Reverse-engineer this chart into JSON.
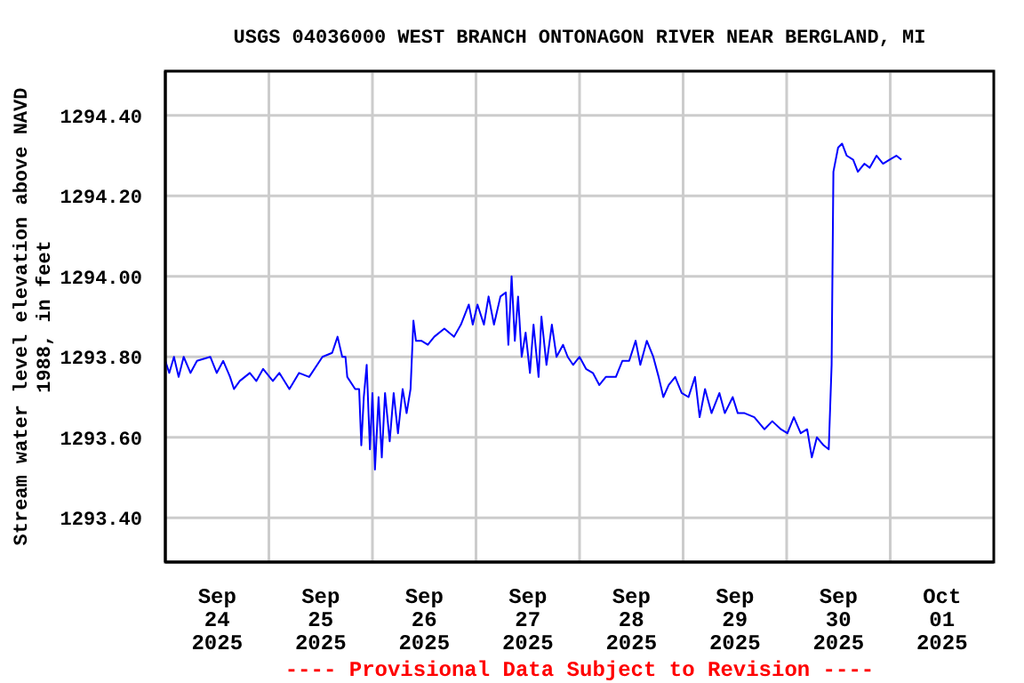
{
  "chart_data": {
    "type": "line",
    "title": "USGS 04036000 WEST BRANCH ONTONAGON RIVER NEAR BERGLAND, MI",
    "ylabel": "Stream water level elevation above NAVD 1988, in feet",
    "annotations": [
      "---- Provisional Data Subject to Revision ----"
    ],
    "xlim": [
      "2025-09-24T00:00",
      "2025-10-02T00:00"
    ],
    "xticks": [
      {
        "value": "2025-09-24T12:00",
        "label": "Sep\n24\n2025"
      },
      {
        "value": "2025-09-25T00:00",
        "label": null
      },
      {
        "value": "2025-09-25T12:00",
        "label": "Sep\n25\n2025"
      },
      {
        "value": "2025-09-26T00:00",
        "label": null
      },
      {
        "value": "2025-09-26T12:00",
        "label": "Sep\n26\n2025"
      },
      {
        "value": "2025-09-27T00:00",
        "label": null
      },
      {
        "value": "2025-09-27T12:00",
        "label": "Sep\n27\n2025"
      },
      {
        "value": "2025-09-28T00:00",
        "label": null
      },
      {
        "value": "2025-09-28T12:00",
        "label": "Sep\n28\n2025"
      },
      {
        "value": "2025-09-29T00:00",
        "label": null
      },
      {
        "value": "2025-09-29T12:00",
        "label": "Sep\n29\n2025"
      },
      {
        "value": "2025-09-30T00:00",
        "label": null
      },
      {
        "value": "2025-09-30T12:00",
        "label": "Sep\n30\n2025"
      },
      {
        "value": "2025-10-01T00:00",
        "label": null
      },
      {
        "value": "2025-10-01T12:00",
        "label": "Oct\n01\n2025"
      }
    ],
    "ylim": [
      1293.29,
      1294.51
    ],
    "yticks": [
      {
        "value": 1293.4,
        "label": "1293.40"
      },
      {
        "value": 1293.6,
        "label": "1293.60"
      },
      {
        "value": 1293.8,
        "label": "1293.80"
      },
      {
        "value": 1294.0,
        "label": "1294.00"
      },
      {
        "value": 1294.2,
        "label": "1294.20"
      },
      {
        "value": 1294.4,
        "label": "1294.40"
      }
    ],
    "grid": true,
    "marker": "none",
    "line_style": "solid",
    "x": [
      "2025-09-24T00:00",
      "2025-09-24T00:55",
      "2025-09-24T02:00",
      "2025-09-24T03:05",
      "2025-09-24T04:15",
      "2025-09-24T05:50",
      "2025-09-24T07:20",
      "2025-09-24T10:25",
      "2025-09-24T11:55",
      "2025-09-24T13:25",
      "2025-09-24T15:00",
      "2025-09-24T15:55",
      "2025-09-24T17:15",
      "2025-09-24T19:35",
      "2025-09-24T21:05",
      "2025-09-24T22:40",
      "2025-09-25T00:55",
      "2025-09-25T02:25",
      "2025-09-25T04:45",
      "2025-09-25T07:00",
      "2025-09-25T09:20",
      "2025-09-25T12:25",
      "2025-09-25T14:40",
      "2025-09-25T15:55",
      "2025-09-25T17:00",
      "2025-09-25T17:45",
      "2025-09-25T18:10",
      "2025-09-25T20:00",
      "2025-09-25T20:55",
      "2025-09-25T21:25",
      "2025-09-25T22:00",
      "2025-09-25T22:40",
      "2025-09-25T23:25",
      "2025-09-26T00:00",
      "2025-09-26T00:35",
      "2025-09-26T01:25",
      "2025-09-26T02:10",
      "2025-09-26T02:55",
      "2025-09-26T04:00",
      "2025-09-26T04:55",
      "2025-09-26T05:55",
      "2025-09-26T07:00",
      "2025-09-26T07:55",
      "2025-09-26T08:50",
      "2025-09-26T09:30",
      "2025-09-26T10:05",
      "2025-09-26T11:20",
      "2025-09-26T12:50",
      "2025-09-26T14:20",
      "2025-09-26T16:40",
      "2025-09-26T18:55",
      "2025-09-26T20:30",
      "2025-09-26T22:20",
      "2025-09-26T23:15",
      "2025-09-27T00:20",
      "2025-09-27T01:50",
      "2025-09-27T02:55",
      "2025-09-27T04:10",
      "2025-09-27T05:40",
      "2025-09-27T06:55",
      "2025-09-27T07:30",
      "2025-09-27T08:15",
      "2025-09-27T09:00",
      "2025-09-27T09:45",
      "2025-09-27T10:35",
      "2025-09-27T11:30",
      "2025-09-27T12:30",
      "2025-09-27T13:20",
      "2025-09-27T14:30",
      "2025-09-27T15:10",
      "2025-09-27T16:20",
      "2025-09-27T17:35",
      "2025-09-27T18:40",
      "2025-09-27T20:10",
      "2025-09-27T21:15",
      "2025-09-27T22:30",
      "2025-09-28T00:00",
      "2025-09-28T01:30",
      "2025-09-28T03:05",
      "2025-09-28T04:35",
      "2025-09-28T06:05",
      "2025-09-28T08:25",
      "2025-09-28T09:55",
      "2025-09-28T11:30",
      "2025-09-28T13:00",
      "2025-09-28T14:05",
      "2025-09-28T15:35",
      "2025-09-28T17:05",
      "2025-09-28T18:20",
      "2025-09-28T19:25",
      "2025-09-28T20:40",
      "2025-09-28T22:10",
      "2025-09-28T23:40",
      "2025-09-29T01:15",
      "2025-09-29T02:45",
      "2025-09-29T03:50",
      "2025-09-29T05:05",
      "2025-09-29T06:35",
      "2025-09-29T08:25",
      "2025-09-29T09:40",
      "2025-09-29T11:30",
      "2025-09-29T12:40",
      "2025-09-29T14:15",
      "2025-09-29T16:30",
      "2025-09-29T18:50",
      "2025-09-29T20:40",
      "2025-09-29T22:40",
      "2025-09-30T00:10",
      "2025-09-30T01:40",
      "2025-09-30T03:15",
      "2025-09-30T04:45",
      "2025-09-30T05:50",
      "2025-09-30T07:00",
      "2025-09-30T08:35",
      "2025-09-30T09:45",
      "2025-09-30T10:25",
      "2025-09-30T10:50",
      "2025-09-30T11:55",
      "2025-09-30T12:50",
      "2025-09-30T13:55",
      "2025-09-30T15:25",
      "2025-09-30T16:30",
      "2025-09-30T18:00",
      "2025-09-30T19:15",
      "2025-09-30T20:50",
      "2025-09-30T22:20",
      "2025-09-30T23:50",
      "2025-10-01T01:25",
      "2025-10-01T02:35"
    ],
    "series": [
      {
        "color": "#0000ff",
        "values": [
          1293.79,
          1293.76,
          1293.8,
          1293.75,
          1293.8,
          1293.76,
          1293.79,
          1293.8,
          1293.76,
          1293.79,
          1293.75,
          1293.72,
          1293.74,
          1293.76,
          1293.74,
          1293.77,
          1293.74,
          1293.76,
          1293.72,
          1293.76,
          1293.75,
          1293.8,
          1293.81,
          1293.85,
          1293.8,
          1293.8,
          1293.75,
          1293.72,
          1293.72,
          1293.58,
          1293.7,
          1293.78,
          1293.57,
          1293.71,
          1293.52,
          1293.7,
          1293.55,
          1293.71,
          1293.59,
          1293.71,
          1293.61,
          1293.72,
          1293.66,
          1293.72,
          1293.89,
          1293.84,
          1293.84,
          1293.83,
          1293.85,
          1293.87,
          1293.85,
          1293.88,
          1293.93,
          1293.88,
          1293.93,
          1293.88,
          1293.95,
          1293.88,
          1293.95,
          1293.96,
          1293.83,
          1294.0,
          1293.84,
          1293.95,
          1293.8,
          1293.86,
          1293.76,
          1293.88,
          1293.75,
          1293.9,
          1293.78,
          1293.88,
          1293.8,
          1293.83,
          1293.8,
          1293.78,
          1293.8,
          1293.77,
          1293.76,
          1293.73,
          1293.75,
          1293.75,
          1293.79,
          1293.79,
          1293.84,
          1293.78,
          1293.84,
          1293.8,
          1293.75,
          1293.7,
          1293.73,
          1293.75,
          1293.71,
          1293.7,
          1293.75,
          1293.65,
          1293.72,
          1293.66,
          1293.71,
          1293.66,
          1293.7,
          1293.66,
          1293.66,
          1293.65,
          1293.62,
          1293.64,
          1293.62,
          1293.61,
          1293.65,
          1293.61,
          1293.62,
          1293.55,
          1293.6,
          1293.58,
          1293.57,
          1293.78,
          1294.26,
          1294.32,
          1294.33,
          1294.3,
          1294.29,
          1294.26,
          1294.28,
          1294.27,
          1294.3,
          1294.28,
          1294.29,
          1294.3,
          1294.29
        ]
      }
    ]
  }
}
